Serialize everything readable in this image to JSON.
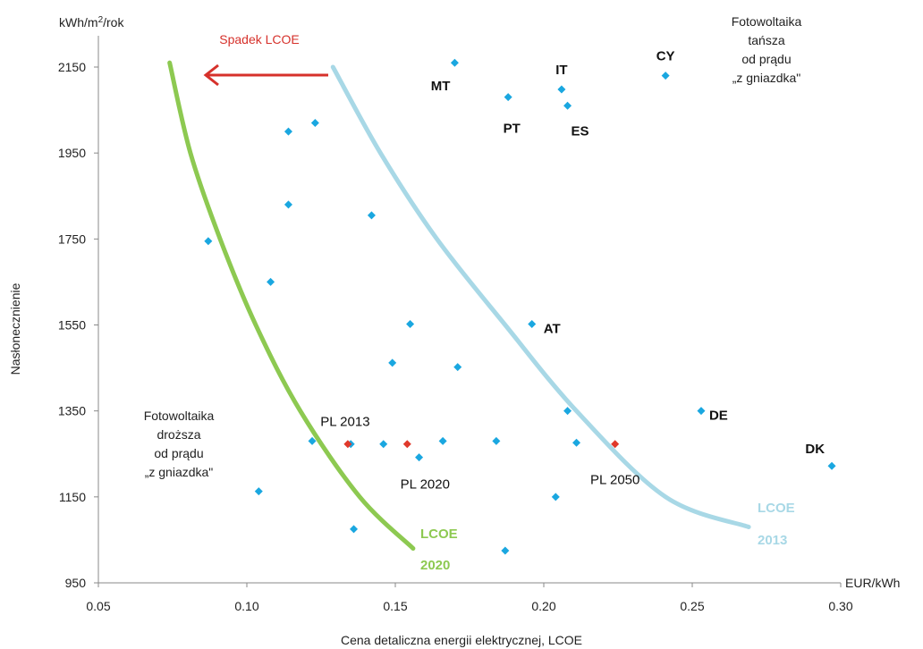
{
  "chart_data": {
    "type": "scatter",
    "title": "",
    "xlabel": "Cena detaliczna energii elektrycznej, LCOE",
    "x_unit": "EUR/kWh",
    "ylabel": "Nasłonecznienie",
    "y_unit": "kWh/m²/rok",
    "xlim": [
      0.05,
      0.3
    ],
    "ylim": [
      950,
      2250
    ],
    "xticks": [
      "0.05",
      "0.10",
      "0.15",
      "0.20",
      "0.25",
      "0.30"
    ],
    "yticks": [
      "950",
      "1150",
      "1350",
      "1550",
      "1750",
      "1950",
      "2150"
    ],
    "grid": false,
    "colors": {
      "country": "#1aa7e0",
      "poland": "#e0392b",
      "lcoe2020": "#8dc951",
      "lcoe2013": "#a8d8e6",
      "arrow": "#d6312b"
    },
    "countries": [
      {
        "x": 0.17,
        "y": 2160,
        "label": "MT"
      },
      {
        "x": 0.188,
        "y": 2080,
        "label": "PT"
      },
      {
        "x": 0.206,
        "y": 2098,
        "label": "IT"
      },
      {
        "x": 0.208,
        "y": 2060,
        "label": "ES"
      },
      {
        "x": 0.241,
        "y": 2130,
        "label": "CY"
      },
      {
        "x": 0.196,
        "y": 1552,
        "label": "AT"
      },
      {
        "x": 0.253,
        "y": 1350,
        "label": "DE"
      },
      {
        "x": 0.297,
        "y": 1222,
        "label": "DK"
      },
      {
        "x": 0.123,
        "y": 2020,
        "label": ""
      },
      {
        "x": 0.114,
        "y": 2000,
        "label": ""
      },
      {
        "x": 0.114,
        "y": 1830,
        "label": ""
      },
      {
        "x": 0.142,
        "y": 1805,
        "label": ""
      },
      {
        "x": 0.087,
        "y": 1745,
        "label": ""
      },
      {
        "x": 0.108,
        "y": 1650,
        "label": ""
      },
      {
        "x": 0.155,
        "y": 1552,
        "label": ""
      },
      {
        "x": 0.149,
        "y": 1462,
        "label": ""
      },
      {
        "x": 0.171,
        "y": 1452,
        "label": ""
      },
      {
        "x": 0.208,
        "y": 1350,
        "label": ""
      },
      {
        "x": 0.122,
        "y": 1280,
        "label": ""
      },
      {
        "x": 0.135,
        "y": 1273,
        "label": ""
      },
      {
        "x": 0.146,
        "y": 1273,
        "label": ""
      },
      {
        "x": 0.166,
        "y": 1280,
        "label": ""
      },
      {
        "x": 0.184,
        "y": 1280,
        "label": ""
      },
      {
        "x": 0.211,
        "y": 1276,
        "label": ""
      },
      {
        "x": 0.158,
        "y": 1242,
        "label": ""
      },
      {
        "x": 0.104,
        "y": 1163,
        "label": ""
      },
      {
        "x": 0.204,
        "y": 1150,
        "label": ""
      },
      {
        "x": 0.136,
        "y": 1075,
        "label": ""
      },
      {
        "x": 0.187,
        "y": 1025,
        "label": ""
      }
    ],
    "poland": [
      {
        "x": 0.134,
        "y": 1273,
        "label": "PL 2013"
      },
      {
        "x": 0.154,
        "y": 1273,
        "label": "PL 2020"
      },
      {
        "x": 0.224,
        "y": 1273,
        "label": "PL 2050"
      }
    ],
    "lcoe_curves": [
      {
        "name_line1": "LCOE",
        "name_line2": "2020",
        "points": [
          [
            0.074,
            2160
          ],
          [
            0.081,
            1950
          ],
          [
            0.091,
            1750
          ],
          [
            0.103,
            1550
          ],
          [
            0.118,
            1350
          ],
          [
            0.138,
            1150
          ],
          [
            0.156,
            1030
          ]
        ]
      },
      {
        "name_line1": "LCOE",
        "name_line2": "2013",
        "points": [
          [
            0.129,
            2150
          ],
          [
            0.145,
            1950
          ],
          [
            0.164,
            1750
          ],
          [
            0.187,
            1550
          ],
          [
            0.211,
            1350
          ],
          [
            0.241,
            1150
          ],
          [
            0.269,
            1080
          ]
        ]
      }
    ],
    "annotations": {
      "arrow_label": "Spadek LCOE",
      "top_right": [
        "Fotowoltaika",
        "tańsza",
        "od prądu",
        "„z gniazdka\""
      ],
      "bottom_left": [
        "Fotowoltaika",
        "droższa",
        "od prądu",
        "„z gniazdka\""
      ]
    }
  }
}
